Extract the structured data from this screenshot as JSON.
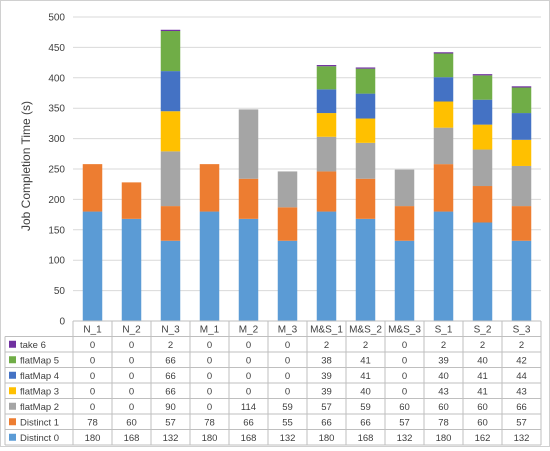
{
  "chart_data": {
    "type": "bar",
    "stacked": true,
    "title": "",
    "xlabel": "",
    "ylabel": "Job Completion Time (s)",
    "ylim": [
      0,
      500
    ],
    "yticks": [
      0,
      50,
      100,
      150,
      200,
      250,
      300,
      350,
      400,
      450,
      500
    ],
    "grid": true,
    "legend": "data-table-below",
    "categories": [
      "N_1",
      "N_2",
      "N_3",
      "M_1",
      "M_2",
      "M_3",
      "M&S_1",
      "M&S_2",
      "M&S_3",
      "S_1",
      "S_2",
      "S_3"
    ],
    "series": [
      {
        "name": "Distinct 0",
        "color": "#5b9bd5",
        "values": [
          180,
          168,
          132,
          180,
          168,
          132,
          180,
          168,
          132,
          180,
          162,
          132
        ]
      },
      {
        "name": "Distinct 1",
        "color": "#ed7d31",
        "values": [
          78,
          60,
          57,
          78,
          66,
          55,
          66,
          66,
          57,
          78,
          60,
          57
        ]
      },
      {
        "name": "flatMap 2",
        "color": "#a5a5a5",
        "values": [
          0,
          0,
          90,
          0,
          114,
          59,
          57,
          59,
          60,
          60,
          60,
          66
        ]
      },
      {
        "name": "flatMap 3",
        "color": "#ffc000",
        "values": [
          0,
          0,
          66,
          0,
          0,
          0,
          39,
          40,
          0,
          43,
          41,
          43
        ]
      },
      {
        "name": "flatMap 4",
        "color": "#4472c4",
        "values": [
          0,
          0,
          66,
          0,
          0,
          0,
          39,
          41,
          0,
          40,
          41,
          44
        ]
      },
      {
        "name": "flatMap 5",
        "color": "#70ad47",
        "values": [
          0,
          0,
          66,
          0,
          0,
          0,
          38,
          41,
          0,
          39,
          40,
          42
        ]
      },
      {
        "name": "take 6",
        "color": "#7030a0",
        "values": [
          0,
          0,
          2,
          0,
          0,
          0,
          2,
          2,
          0,
          2,
          2,
          2
        ]
      }
    ]
  }
}
